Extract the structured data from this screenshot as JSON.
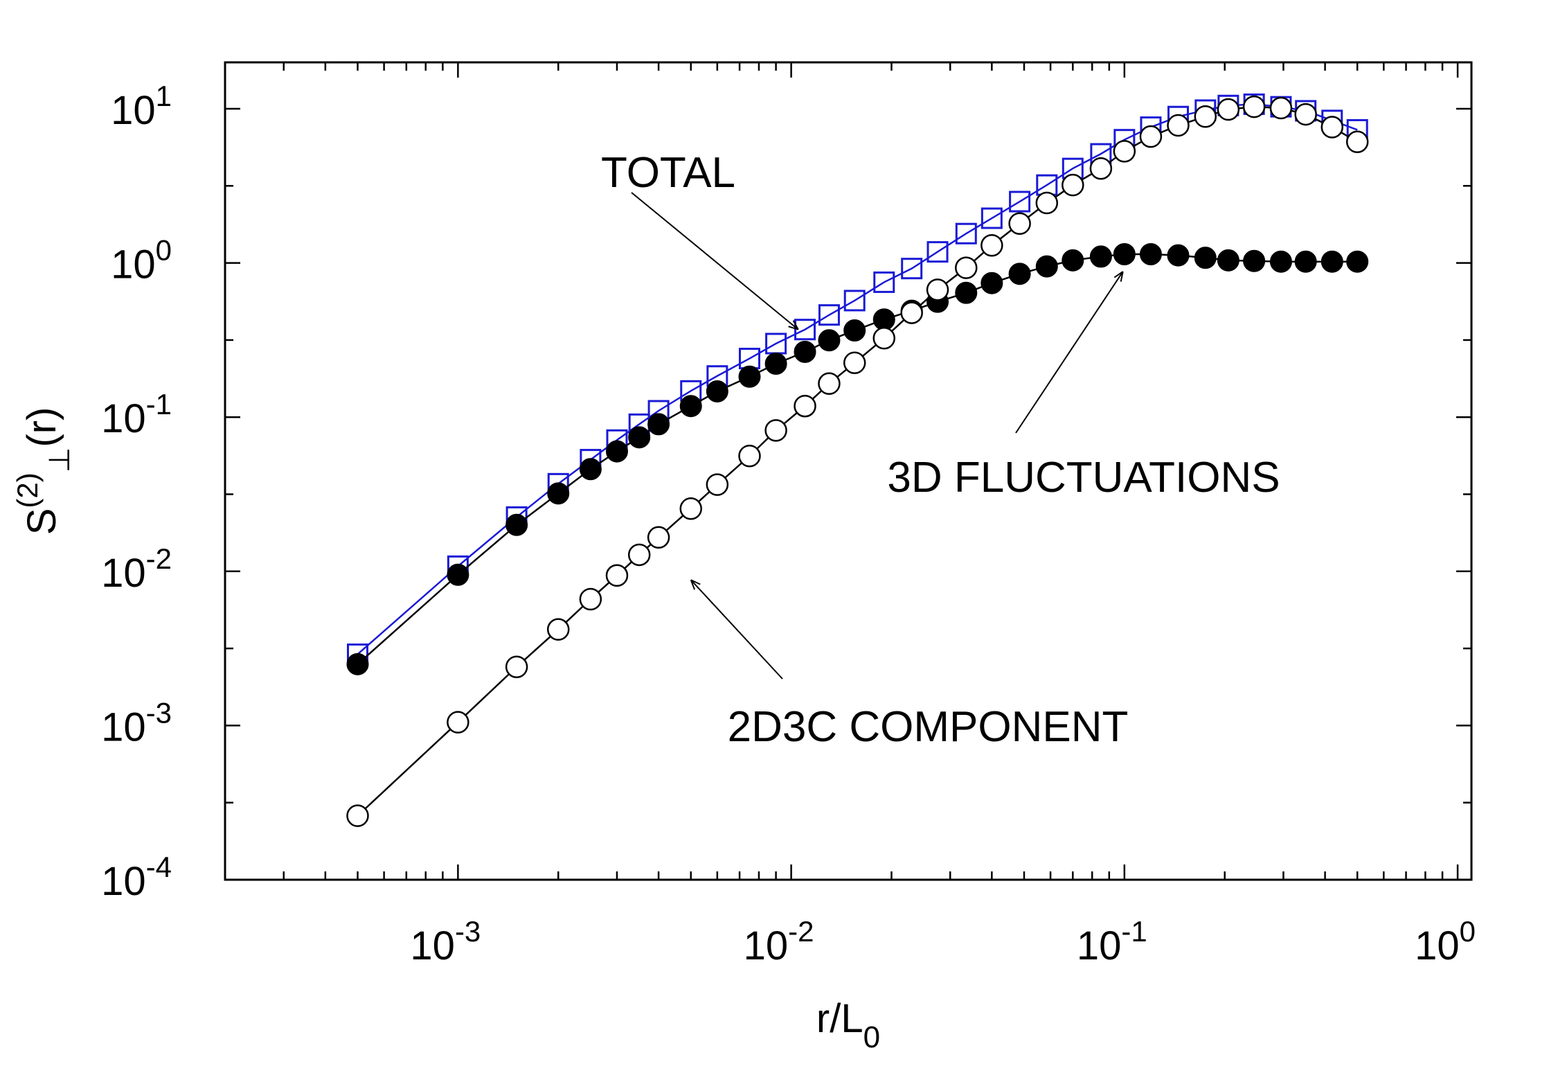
{
  "chart_data": {
    "type": "scatter",
    "scale": "log-log",
    "title": "",
    "xlabel": "r/L",
    "xlabel_sub": "0",
    "ylabel": {
      "base": "S",
      "sup": "(2)",
      "sub": "⊥",
      "suffix": "(r)"
    },
    "xlim": [
      0.0002,
      1.1
    ],
    "ylim": [
      0.0001,
      20
    ],
    "x_ticks": [
      {
        "value": 0.001,
        "base": "10",
        "exp": "-3"
      },
      {
        "value": 0.01,
        "base": "10",
        "exp": "-2"
      },
      {
        "value": 0.1,
        "base": "10",
        "exp": "-1"
      },
      {
        "value": 1,
        "base": "10",
        "exp": "0"
      }
    ],
    "y_ticks": [
      {
        "value": 0.0001,
        "base": "10",
        "exp": "-4"
      },
      {
        "value": 0.001,
        "base": "10",
        "exp": "-3"
      },
      {
        "value": 0.01,
        "base": "10",
        "exp": "-2"
      },
      {
        "value": 0.1,
        "base": "10",
        "exp": "-1"
      },
      {
        "value": 1,
        "base": "10",
        "exp": "0"
      },
      {
        "value": 10,
        "base": "10",
        "exp": "1"
      }
    ],
    "grid": false,
    "series": [
      {
        "name": "TOTAL",
        "marker": "open-square",
        "color": "#1a1ad6",
        "x": [
          0.0005,
          0.001,
          0.0015,
          0.002,
          0.0025,
          0.003,
          0.0035,
          0.004,
          0.005,
          0.006,
          0.0075,
          0.009,
          0.011,
          0.013,
          0.0155,
          0.019,
          0.023,
          0.0275,
          0.0335,
          0.04,
          0.0485,
          0.0585,
          0.07,
          0.085,
          0.1,
          0.12,
          0.145,
          0.175,
          0.205,
          0.245,
          0.295,
          0.35,
          0.42,
          0.5
        ],
        "y": [
          0.0029,
          0.0108,
          0.0225,
          0.037,
          0.053,
          0.071,
          0.09,
          0.11,
          0.148,
          0.185,
          0.24,
          0.3,
          0.37,
          0.46,
          0.57,
          0.75,
          0.92,
          1.18,
          1.55,
          1.95,
          2.5,
          3.2,
          4.1,
          5.1,
          6.3,
          7.6,
          8.9,
          9.8,
          10.5,
          10.7,
          10.3,
          9.7,
          8.4,
          7.3
        ]
      },
      {
        "name": "3D FLUCTUATIONS",
        "marker": "filled-circle",
        "color": "#000000",
        "x": [
          0.0005,
          0.001,
          0.0015,
          0.002,
          0.0025,
          0.003,
          0.0035,
          0.004,
          0.005,
          0.006,
          0.0075,
          0.009,
          0.011,
          0.013,
          0.0155,
          0.019,
          0.023,
          0.0275,
          0.0335,
          0.04,
          0.0485,
          0.0585,
          0.07,
          0.085,
          0.1,
          0.12,
          0.145,
          0.175,
          0.205,
          0.245,
          0.295,
          0.35,
          0.42,
          0.5
        ],
        "y": [
          0.0025,
          0.0095,
          0.02,
          0.032,
          0.046,
          0.06,
          0.074,
          0.09,
          0.118,
          0.147,
          0.183,
          0.222,
          0.265,
          0.315,
          0.365,
          0.43,
          0.49,
          0.56,
          0.64,
          0.74,
          0.85,
          0.95,
          1.04,
          1.1,
          1.14,
          1.14,
          1.12,
          1.08,
          1.04,
          1.03,
          1.02,
          1.02,
          1.02,
          1.02
        ]
      },
      {
        "name": "2D3C COMPONENT",
        "marker": "open-circle",
        "color": "#000000",
        "x": [
          0.0005,
          0.001,
          0.0015,
          0.002,
          0.0025,
          0.003,
          0.0035,
          0.004,
          0.005,
          0.006,
          0.0075,
          0.009,
          0.011,
          0.013,
          0.0155,
          0.019,
          0.023,
          0.0275,
          0.0335,
          0.04,
          0.0485,
          0.0585,
          0.07,
          0.085,
          0.1,
          0.12,
          0.145,
          0.175,
          0.205,
          0.245,
          0.295,
          0.35,
          0.42,
          0.5
        ],
        "y": [
          0.00026,
          0.00105,
          0.0024,
          0.0042,
          0.0066,
          0.0094,
          0.0128,
          0.0166,
          0.0255,
          0.0365,
          0.056,
          0.082,
          0.118,
          0.165,
          0.225,
          0.325,
          0.475,
          0.67,
          0.93,
          1.3,
          1.8,
          2.45,
          3.2,
          4.1,
          5.3,
          6.6,
          7.8,
          8.9,
          9.9,
          10.3,
          10.1,
          9.2,
          7.6,
          6.1
        ]
      }
    ],
    "annotations": [
      {
        "text": "TOTAL",
        "target_x": 0.0105,
        "target_y": 0.37
      },
      {
        "text": "3D FLUCTUATIONS",
        "target_x": 0.099,
        "target_y": 0.88
      },
      {
        "text": "2D3C COMPONENT",
        "target_x": 0.005,
        "target_y": 0.0088
      }
    ]
  }
}
